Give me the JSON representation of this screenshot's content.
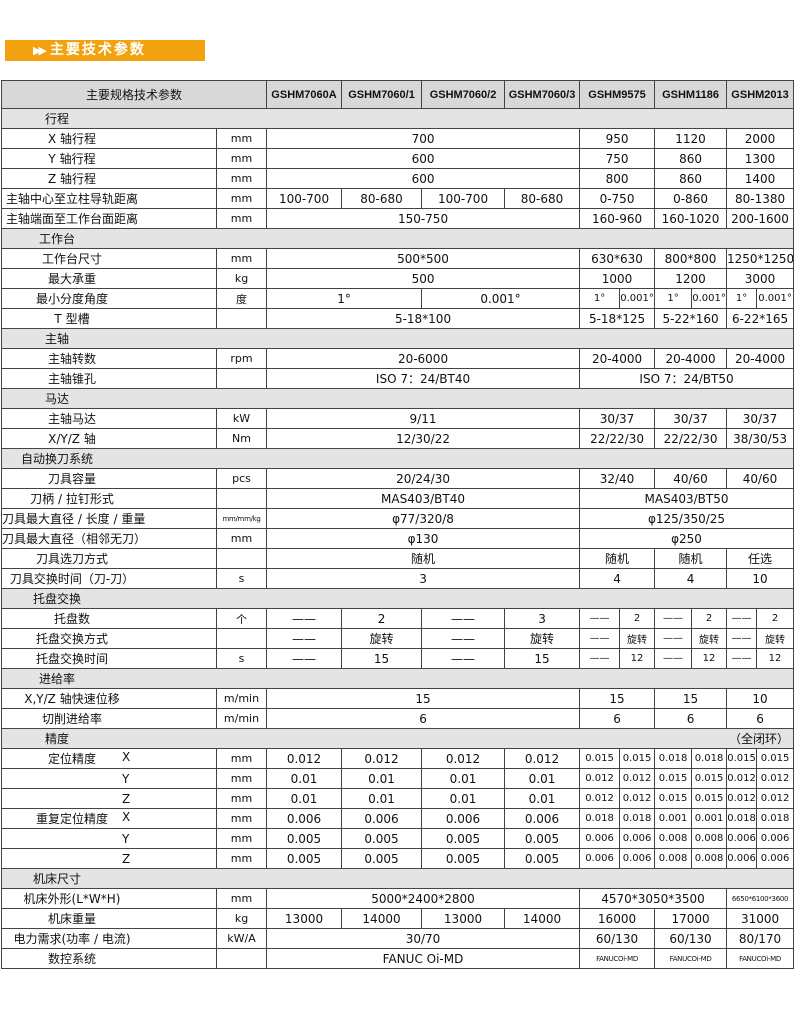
{
  "title": "主要技术参数",
  "title_icon": "double-arrow-icon",
  "colors": {
    "accent": "#f2a20f",
    "header_bg": "#d8d8d8",
    "section_bg": "#e4e4e4"
  },
  "header": {
    "label": "主要规格技术参数",
    "models": [
      "GSHM7060A",
      "GSHM7060/1",
      "GSHM7060/2",
      "GSHM7060/3",
      "GSHM9575",
      "GSHM1186",
      "GSHM2013"
    ]
  },
  "rows": [
    {
      "type": "section",
      "label": "行程"
    },
    {
      "label": "X 轴行程",
      "unit": "mm",
      "cells": [
        "700",
        "950",
        "1120",
        "2000"
      ]
    },
    {
      "label": "Y 轴行程",
      "unit": "mm",
      "cells": [
        "600",
        "750",
        "860",
        "1300"
      ]
    },
    {
      "label": "Z 轴行程",
      "unit": "mm",
      "cells": [
        "600",
        "800",
        "860",
        "1400"
      ]
    },
    {
      "label": "主轴中心至立柱导轨距离",
      "unit": "mm",
      "cells": [
        "100-700",
        "80-680",
        "100-700",
        "80-680",
        "0-750",
        "0-860",
        "80-1380"
      ]
    },
    {
      "label": "主轴端面至工作台面距离",
      "unit": "mm",
      "cells": [
        "150-750",
        "160-960",
        "160-1020",
        "200-1600"
      ]
    },
    {
      "type": "section",
      "label": "工作台"
    },
    {
      "label": "工作台尺寸",
      "unit": "mm",
      "cells": [
        "500*500",
        "630*630",
        "800*800",
        "1250*1250"
      ]
    },
    {
      "label": "最大承重",
      "unit": "kg",
      "cells": [
        "500",
        "1000",
        "1200",
        "3000"
      ]
    },
    {
      "label": "最小分度角度",
      "unit": "度",
      "cells": [
        "1°",
        "0.001°",
        "1°",
        "0.001°",
        "1°",
        "0.001°",
        "1°",
        "0.001°"
      ]
    },
    {
      "label": "T 型槽",
      "unit": "",
      "cells": [
        "5-18*100",
        "5-18*125",
        "5-22*160",
        "6-22*165"
      ]
    },
    {
      "type": "section",
      "label": "主轴"
    },
    {
      "label": "主轴转数",
      "unit": "rpm",
      "cells": [
        "20-6000",
        "20-4000",
        "20-4000",
        "20-4000"
      ]
    },
    {
      "label": "主轴锥孔",
      "unit": "",
      "cells": [
        "ISO  7：24/BT40",
        "ISO 7：24/BT50"
      ]
    },
    {
      "type": "section",
      "label": "马达"
    },
    {
      "label": "主轴马达",
      "unit": "kW",
      "cells": [
        "9/11",
        "30/37",
        "30/37",
        "30/37"
      ]
    },
    {
      "label": "X/Y/Z 轴",
      "unit": "Nm",
      "cells": [
        "12/30/22",
        "22/22/30",
        "22/22/30",
        "38/30/53"
      ]
    },
    {
      "type": "section",
      "label": "自动换刀系统"
    },
    {
      "label": "刀具容量",
      "unit": "pcs",
      "cells": [
        "20/24/30",
        "32/40",
        "40/60",
        "40/60"
      ]
    },
    {
      "label": "刀柄 / 拉钉形式",
      "unit": "",
      "cells": [
        "MAS403/BT40",
        "MAS403/BT50"
      ]
    },
    {
      "label": "刀具最大直径 / 长度 / 重量",
      "unit": "mm/mm/kg",
      "cells": [
        "φ77/320/8",
        "φ125/350/25"
      ]
    },
    {
      "label": "刀具最大直径（相邻无刀）",
      "unit": "mm",
      "cells": [
        "φ130",
        "φ250"
      ]
    },
    {
      "label": "刀具选刀方式",
      "unit": "",
      "cells": [
        "随机",
        "随机",
        "随机",
        "任选"
      ]
    },
    {
      "label": "刀具交换时间（刀-刀）",
      "unit": "s",
      "cells": [
        "3",
        "4",
        "4",
        "10"
      ]
    },
    {
      "type": "section",
      "label": "托盘交换"
    },
    {
      "label": "托盘数",
      "unit": "个",
      "cells": [
        "——",
        "2",
        "——",
        "3",
        "——",
        "2",
        "——",
        "2",
        "——",
        "2"
      ]
    },
    {
      "label": "托盘交换方式",
      "unit": "",
      "cells": [
        "——",
        "旋转",
        "——",
        "旋转",
        "——",
        "旋转",
        "——",
        "旋转",
        "——",
        "旋转"
      ]
    },
    {
      "label": "托盘交换时间",
      "unit": "s",
      "cells": [
        "——",
        "15",
        "——",
        "15",
        "——",
        "12",
        "——",
        "12",
        "——",
        "12"
      ]
    },
    {
      "type": "section",
      "label": "进给率"
    },
    {
      "label": "X,Y/Z 轴快速位移",
      "unit": "m/min",
      "cells": [
        "15",
        "15",
        "15",
        "10"
      ]
    },
    {
      "label": "切削进给率",
      "unit": "m/min",
      "cells": [
        "6",
        "6",
        "6",
        "6"
      ]
    },
    {
      "type": "section",
      "label": "精度",
      "note": "（全闭环）"
    },
    {
      "label": "定位精度",
      "axis": "X",
      "unit": "mm",
      "cells": [
        "0.012",
        "0.012",
        "0.012",
        "0.012",
        "0.015",
        "0.015",
        "0.018",
        "0.018",
        "0.015",
        "0.015"
      ]
    },
    {
      "label": "",
      "axis": "Y",
      "unit": "mm",
      "cells": [
        "0.01",
        "0.01",
        "0.01",
        "0.01",
        "0.012",
        "0.012",
        "0.015",
        "0.015",
        "0.012",
        "0.012"
      ]
    },
    {
      "label": "",
      "axis": "Z",
      "unit": "mm",
      "cells": [
        "0.01",
        "0.01",
        "0.01",
        "0.01",
        "0.012",
        "0.012",
        "0.015",
        "0.015",
        "0.012",
        "0.012"
      ]
    },
    {
      "label": "重复定位精度",
      "axis": "X",
      "unit": "mm",
      "cells": [
        "0.006",
        "0.006",
        "0.006",
        "0.006",
        "0.018",
        "0.018",
        "0.001",
        "0.001",
        "0.018",
        "0.018"
      ]
    },
    {
      "label": "",
      "axis": "Y",
      "unit": "mm",
      "cells": [
        "0.005",
        "0.005",
        "0.005",
        "0.005",
        "0.006",
        "0.006",
        "0.008",
        "0.008",
        "0.006",
        "0.006"
      ]
    },
    {
      "label": "",
      "axis": "Z",
      "unit": "mm",
      "cells": [
        "0.005",
        "0.005",
        "0.005",
        "0.005",
        "0.006",
        "0.006",
        "0.008",
        "0.008",
        "0.006",
        "0.006"
      ]
    },
    {
      "type": "section",
      "label": "机床尺寸"
    },
    {
      "label": "机床外形(L*W*H)",
      "unit": "mm",
      "cells": [
        "5000*2400*2800",
        "4570*3050*3500",
        "6650*6100*3600"
      ]
    },
    {
      "label": "机床重量",
      "unit": "kg",
      "cells": [
        "13000",
        "14000",
        "13000",
        "14000",
        "16000",
        "17000",
        "31000"
      ]
    },
    {
      "label": "电力需求(功率 / 电流)",
      "unit": "kW/A",
      "cells": [
        "30/70",
        "60/130",
        "60/130",
        "80/170"
      ]
    },
    {
      "label": "数控系统",
      "unit": "",
      "cells": [
        "FANUC  Oi-MD",
        "FANUCOi-MD",
        "FANUCOi-MD",
        "FANUCOi-MD"
      ]
    }
  ]
}
